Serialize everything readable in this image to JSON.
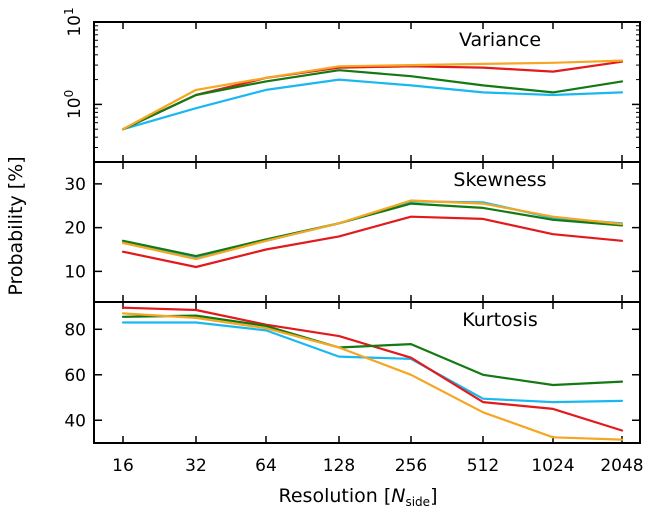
{
  "chart_data": [
    {
      "type": "line",
      "title": "Variance",
      "yscale": "log",
      "ylim": [
        0.2,
        10
      ],
      "yticks": [
        {
          "value": 1,
          "base": "10",
          "exp": "0"
        },
        {
          "value": 10,
          "base": "10",
          "exp": "1"
        }
      ],
      "x": [
        "16",
        "32",
        "64",
        "128",
        "256",
        "512",
        "1024",
        "2048"
      ],
      "series": [
        {
          "color": "#1ab8f0",
          "values": [
            0.5,
            0.9,
            1.5,
            2.0,
            1.7,
            1.4,
            1.3,
            1.4
          ]
        },
        {
          "color": "#e31a1c",
          "values": [
            0.5,
            1.3,
            2.1,
            2.8,
            2.9,
            2.8,
            2.5,
            3.3
          ]
        },
        {
          "color": "#137a13",
          "values": [
            0.5,
            1.3,
            1.9,
            2.6,
            2.2,
            1.7,
            1.4,
            1.9
          ]
        },
        {
          "color": "#f5a623",
          "values": [
            0.5,
            1.5,
            2.1,
            2.9,
            3.0,
            3.1,
            3.2,
            3.4
          ]
        }
      ]
    },
    {
      "type": "line",
      "title": "Skewness",
      "ylim": [
        3,
        35
      ],
      "yticks": [
        {
          "value": 10,
          "label": "10"
        },
        {
          "value": 20,
          "label": "20"
        },
        {
          "value": 30,
          "label": "30"
        }
      ],
      "x": [
        "16",
        "32",
        "64",
        "128",
        "256",
        "512",
        "1024",
        "2048"
      ],
      "series": [
        {
          "color": "#1ab8f0",
          "values": [
            16.5,
            13.0,
            17.0,
            21.0,
            26.0,
            25.8,
            22.2,
            21.0
          ]
        },
        {
          "color": "#e31a1c",
          "values": [
            14.5,
            11.0,
            15.0,
            18.0,
            22.5,
            22.0,
            18.5,
            17.0
          ]
        },
        {
          "color": "#137a13",
          "values": [
            17.0,
            13.5,
            17.3,
            21.0,
            25.5,
            24.5,
            21.8,
            20.5
          ]
        },
        {
          "color": "#f5a623",
          "values": [
            16.5,
            12.8,
            17.0,
            21.0,
            26.2,
            25.5,
            22.5,
            20.8
          ]
        }
      ]
    },
    {
      "type": "line",
      "title": "Kurtosis",
      "ylim": [
        30,
        92
      ],
      "yticks": [
        {
          "value": 40,
          "label": "40"
        },
        {
          "value": 60,
          "label": "60"
        },
        {
          "value": 80,
          "label": "80"
        }
      ],
      "x": [
        "16",
        "32",
        "64",
        "128",
        "256",
        "512",
        "1024",
        "2048"
      ],
      "series": [
        {
          "color": "#1ab8f0",
          "values": [
            83.0,
            83.0,
            79.5,
            68.0,
            67.0,
            49.5,
            48.0,
            48.5
          ]
        },
        {
          "color": "#e31a1c",
          "values": [
            89.5,
            88.5,
            82.0,
            77.0,
            67.5,
            48.0,
            45.0,
            35.5
          ]
        },
        {
          "color": "#137a13",
          "values": [
            85.5,
            86.0,
            81.5,
            72.0,
            73.5,
            60.0,
            55.5,
            57.0
          ]
        },
        {
          "color": "#f5a623",
          "values": [
            87.0,
            85.0,
            80.5,
            72.0,
            60.0,
            43.5,
            32.5,
            31.5
          ]
        }
      ]
    }
  ],
  "xlabel": {
    "main": "Resolution [",
    "var": "N",
    "sub": "side",
    "close": "]"
  },
  "ylabel": "Probability [%]"
}
